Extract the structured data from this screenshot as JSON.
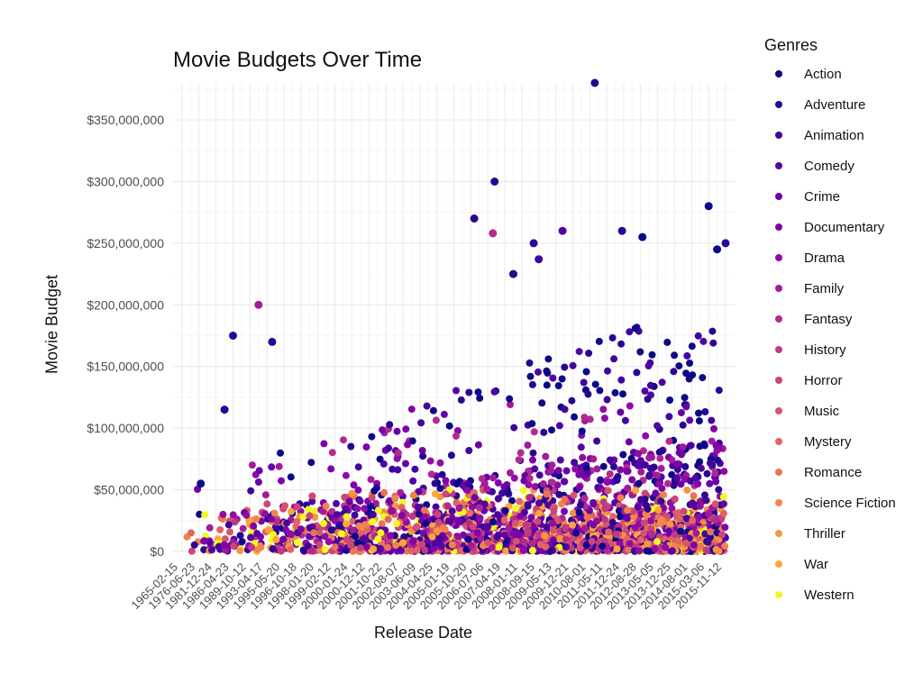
{
  "chart_data": {
    "type": "scatter",
    "title": "Movie Budgets Over Time",
    "xlabel": "Release Date",
    "ylabel": "Movie Budget",
    "ylim": [
      0,
      380000000
    ],
    "y_ticks": [
      0,
      50000000,
      100000000,
      150000000,
      200000000,
      250000000,
      300000000,
      350000000
    ],
    "y_tick_labels": [
      "$0",
      "$50,000,000",
      "$100,000,000",
      "$150,000,000",
      "$200,000,000",
      "$250,000,000",
      "$300,000,000",
      "$350,000,000"
    ],
    "x_tick_labels": [
      "1965-02-15",
      "1976-06-23",
      "1981-12-24",
      "1986-04-23",
      "1989-10-12",
      "1993-04-17",
      "1995-05-20",
      "1996-10-18",
      "1998-01-20",
      "1999-02-12",
      "2000-01-24",
      "2000-12-12",
      "2001-10-22",
      "2002-08-07",
      "2003-06-09",
      "2004-04-25",
      "2005-01-19",
      "2005-10-20",
      "2006-07-06",
      "2007-04-19",
      "2008-01-11",
      "2008-09-15",
      "2009-05-13",
      "2009-12-21",
      "2010-08-01",
      "2011-05-11",
      "2011-12-24",
      "2012-08-28",
      "2013-05-05",
      "2013-12-25",
      "2014-08-01",
      "2015-03-06",
      "2015-11-12"
    ],
    "grid": true,
    "legend_position": "right",
    "legend_title": "Genres",
    "series": [
      {
        "name": "Action",
        "color": "#0d0887"
      },
      {
        "name": "Adventure",
        "color": "#2a0593"
      },
      {
        "name": "Animation",
        "color": "#41049d"
      },
      {
        "name": "Comedy",
        "color": "#5302a3"
      },
      {
        "name": "Crime",
        "color": "#6a00a8"
      },
      {
        "name": "Documentary",
        "color": "#7e03a8"
      },
      {
        "name": "Drama",
        "color": "#8f0da4"
      },
      {
        "name": "Family",
        "color": "#a11b9b"
      },
      {
        "name": "Fantasy",
        "color": "#b12a90"
      },
      {
        "name": "History",
        "color": "#bf3984"
      },
      {
        "name": "Horror",
        "color": "#cc4778"
      },
      {
        "name": "Music",
        "color": "#d6556d"
      },
      {
        "name": "Mystery",
        "color": "#e16462"
      },
      {
        "name": "Romance",
        "color": "#ea7457"
      },
      {
        "name": "Science Fiction",
        "color": "#f2844b"
      },
      {
        "name": "Thriller",
        "color": "#f89540"
      },
      {
        "name": "War",
        "color": "#fca636"
      },
      {
        "name": "Western",
        "color": "#f0f921"
      }
    ],
    "highlight_points": [
      {
        "x_index": 24.3,
        "y": 380000000,
        "genre": "Adventure"
      },
      {
        "x_index": 18.4,
        "y": 300000000,
        "genre": "Adventure"
      },
      {
        "x_index": 31.0,
        "y": 280000000,
        "genre": "Action"
      },
      {
        "x_index": 17.2,
        "y": 270000000,
        "genre": "Adventure"
      },
      {
        "x_index": 22.4,
        "y": 260000000,
        "genre": "Comedy"
      },
      {
        "x_index": 18.3,
        "y": 258000000,
        "genre": "Fantasy"
      },
      {
        "x_index": 25.9,
        "y": 260000000,
        "genre": "Adventure"
      },
      {
        "x_index": 27.1,
        "y": 255000000,
        "genre": "Action"
      },
      {
        "x_index": 32.0,
        "y": 250000000,
        "genre": "Adventure"
      },
      {
        "x_index": 31.5,
        "y": 245000000,
        "genre": "Action"
      },
      {
        "x_index": 20.7,
        "y": 250000000,
        "genre": "Adventure"
      },
      {
        "x_index": 21.0,
        "y": 237000000,
        "genre": "Animation"
      },
      {
        "x_index": 19.5,
        "y": 225000000,
        "genre": "Adventure"
      },
      {
        "x_index": 4.5,
        "y": 200000000,
        "genre": "Family"
      },
      {
        "x_index": 3.0,
        "y": 175000000,
        "genre": "Adventure"
      },
      {
        "x_index": 5.3,
        "y": 170000000,
        "genre": "Adventure"
      },
      {
        "x_index": 2.5,
        "y": 115000000,
        "genre": "Adventure"
      },
      {
        "x_index": 1.1,
        "y": 55000000,
        "genre": "Action"
      }
    ]
  }
}
